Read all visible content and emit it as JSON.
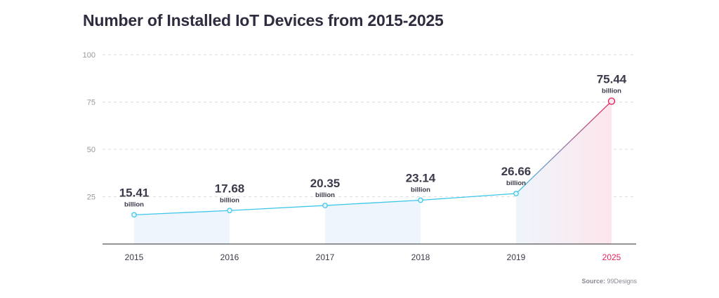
{
  "title": "Number of Installed IoT Devices from 2015-2025",
  "source": {
    "label": "Source:",
    "value": "99Designs"
  },
  "colors": {
    "line": "#3dc6ec",
    "highlight": "#e5235a",
    "fill": "#eef5fc",
    "highlight_fill": "#fde6ec",
    "grid": "#dedede",
    "axis": "#555555",
    "text": "#3a3a4a",
    "tick_label": "#999999"
  },
  "chart_data": {
    "type": "line",
    "title": "Number of Installed IoT Devices from 2015-2025",
    "xlabel": "",
    "ylabel": "",
    "categories": [
      "2015",
      "2016",
      "2017",
      "2018",
      "2019",
      "2025"
    ],
    "values": [
      15.41,
      17.68,
      20.35,
      23.14,
      26.66,
      75.44
    ],
    "value_labels": [
      "15.41",
      "17.68",
      "20.35",
      "23.14",
      "26.66",
      "75.44"
    ],
    "unit": "billion",
    "ylim": [
      0,
      100
    ],
    "yticks": [
      25,
      50,
      75,
      100
    ],
    "grid": true,
    "highlight_category": "2025"
  }
}
